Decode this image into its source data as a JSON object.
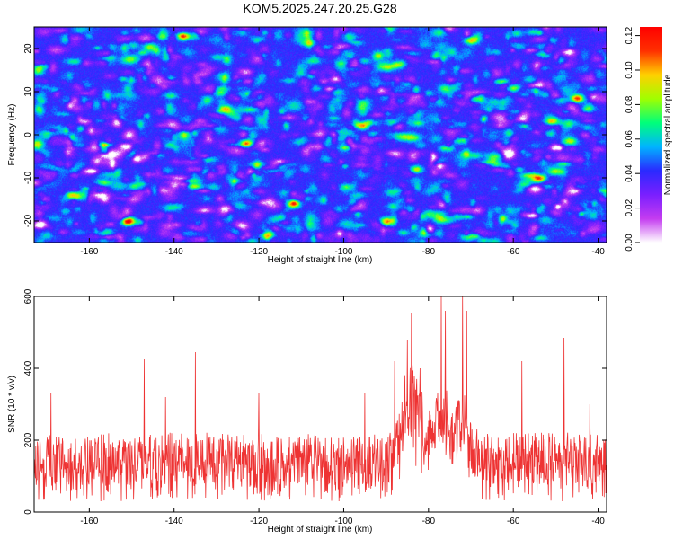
{
  "title": "KOM5.2025.247.20.25.G28",
  "chart_data": [
    {
      "type": "heatmap",
      "xlabel": "Height of straight line (km)",
      "ylabel": "Frequency (Hz)",
      "xlim": [
        -173,
        -38
      ],
      "ylim": [
        -25,
        25
      ],
      "xticks": [
        -160,
        -140,
        -120,
        -100,
        -80,
        -60,
        -40
      ],
      "yticks": [
        -20,
        -10,
        0,
        10,
        20
      ],
      "xtick_labels": [
        "-160",
        "-140",
        "-120",
        "-100",
        "-80",
        "-60",
        "-40"
      ],
      "ytick_labels": [
        "-20",
        "-10",
        "0",
        "10",
        "20"
      ],
      "colorbar": {
        "label": "Normalized spectral amplitude",
        "range": [
          0,
          0.125
        ],
        "ticks": [
          0,
          0.02,
          0.04,
          0.06,
          0.08,
          0.1,
          0.12
        ],
        "tick_labels": [
          "0.00",
          "0.02",
          "0.04",
          "0.06",
          "0.08",
          "0.10",
          "0.12"
        ],
        "colormap": [
          "#ffffff",
          "#c43cf0",
          "#7a1fff",
          "#2a2aff",
          "#00b4ff",
          "#00ff7a",
          "#a0ff00",
          "#ffd000",
          "#ff3000",
          "#ff0000"
        ]
      },
      "hotspots": [
        {
          "x": -138,
          "y": 23,
          "v": 0.12
        },
        {
          "x": -151,
          "y": -20,
          "v": 0.12
        },
        {
          "x": -123,
          "y": -2,
          "v": 0.1
        },
        {
          "x": -45,
          "y": 8.5,
          "v": 0.1
        },
        {
          "x": -164,
          "y": -14,
          "v": 0.09
        },
        {
          "x": -112,
          "y": -16,
          "v": 0.08
        },
        {
          "x": -60,
          "y": 11,
          "v": 0.08
        },
        {
          "x": -90,
          "y": -20,
          "v": 0.09
        },
        {
          "x": -128,
          "y": 6,
          "v": 0.08
        },
        {
          "x": -83,
          "y": -8,
          "v": 0.08
        },
        {
          "x": -70,
          "y": 22,
          "v": 0.08
        },
        {
          "x": -54,
          "y": -10,
          "v": 0.08
        },
        {
          "x": -118,
          "y": -23,
          "v": 0.08
        },
        {
          "x": -96,
          "y": 2,
          "v": 0.07
        }
      ]
    },
    {
      "type": "line",
      "xlabel": "Height of straight line (km)",
      "ylabel": "SNR (10 * v/v)",
      "xlim": [
        -173,
        -38
      ],
      "ylim": [
        0,
        600
      ],
      "xticks": [
        -160,
        -140,
        -120,
        -100,
        -80,
        -60,
        -40
      ],
      "yticks": [
        0,
        200,
        400,
        600
      ],
      "xtick_labels": [
        "-160",
        "-140",
        "-120",
        "-100",
        "-80",
        "-60",
        "-40"
      ],
      "ytick_labels": [
        "0",
        "200",
        "400",
        "600"
      ],
      "series": [
        {
          "name": "SNR",
          "color": "#ee3333",
          "baseline": 120,
          "noise": 90,
          "peaks": [
            {
              "x": -169,
              "y": 330
            },
            {
              "x": -147,
              "y": 425
            },
            {
              "x": -142,
              "y": 320
            },
            {
              "x": -135,
              "y": 445
            },
            {
              "x": -120,
              "y": 330
            },
            {
              "x": -95,
              "y": 330
            },
            {
              "x": -88,
              "y": 420
            },
            {
              "x": -85,
              "y": 480
            },
            {
              "x": -84,
              "y": 555
            },
            {
              "x": -82,
              "y": 400
            },
            {
              "x": -77,
              "y": 600
            },
            {
              "x": -76,
              "y": 560
            },
            {
              "x": -72,
              "y": 600
            },
            {
              "x": -71,
              "y": 560
            },
            {
              "x": -58,
              "y": 420
            },
            {
              "x": -48,
              "y": 485
            },
            {
              "x": -42,
              "y": 300
            }
          ],
          "bumps": [
            {
              "x": -84,
              "w": 3,
              "h": 170
            },
            {
              "x": -77,
              "w": 3,
              "h": 110
            },
            {
              "x": -72,
              "w": 2.5,
              "h": 90
            }
          ]
        }
      ]
    }
  ]
}
